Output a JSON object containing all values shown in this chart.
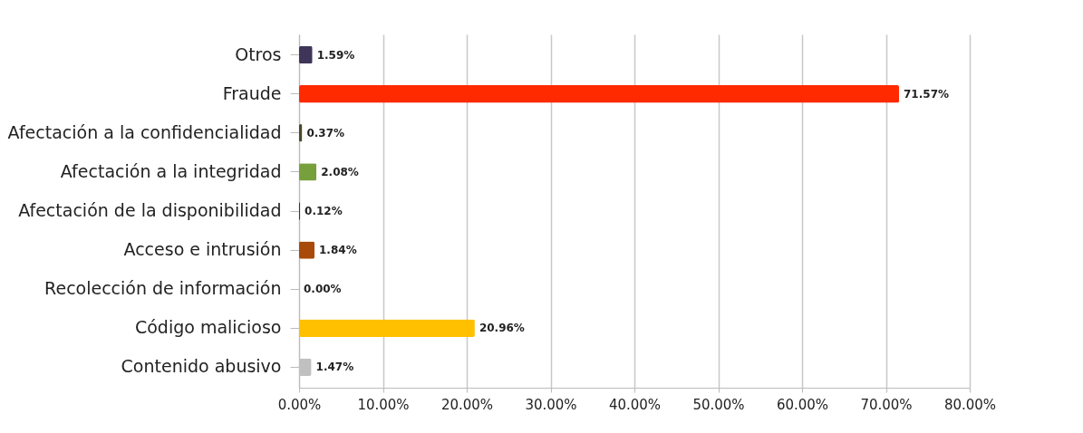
{
  "chart_data": {
    "type": "bar",
    "orientation": "horizontal",
    "categories": [
      "Otros",
      "Fraude",
      "Afectación a la confidencialidad",
      "Afectación a la integridad",
      "Afectación de la disponibilidad",
      "Acceso e intrusión",
      "Recolección de información",
      "Código malicioso",
      "Contenido abusivo"
    ],
    "values": [
      1.59,
      71.57,
      0.37,
      2.08,
      0.12,
      1.84,
      0.0,
      20.96,
      1.47
    ],
    "value_labels": [
      "1.59%",
      "71.57%",
      "0.37%",
      "2.08%",
      "0.12%",
      "1.84%",
      "0.00%",
      "20.96%",
      "1.47%"
    ],
    "colors": [
      "#3f3558",
      "#ff2a00",
      "#4a4a2a",
      "#77a03c",
      "#1f3a66",
      "#a84a0a",
      "#d0741c",
      "#ffc000",
      "#c0c0c0"
    ],
    "xlim": [
      0,
      80
    ],
    "xticks": [
      {
        "value": 0,
        "label": "0.00%"
      },
      {
        "value": 10,
        "label": "10.00%"
      },
      {
        "value": 20,
        "label": "20.00%"
      },
      {
        "value": 30,
        "label": "30.00%"
      },
      {
        "value": 40,
        "label": "40.00%"
      },
      {
        "value": 50,
        "label": "50.00%"
      },
      {
        "value": 60,
        "label": "60.00%"
      },
      {
        "value": 70,
        "label": "70.00%"
      },
      {
        "value": 80,
        "label": "80.00%"
      }
    ],
    "grid": "x"
  }
}
